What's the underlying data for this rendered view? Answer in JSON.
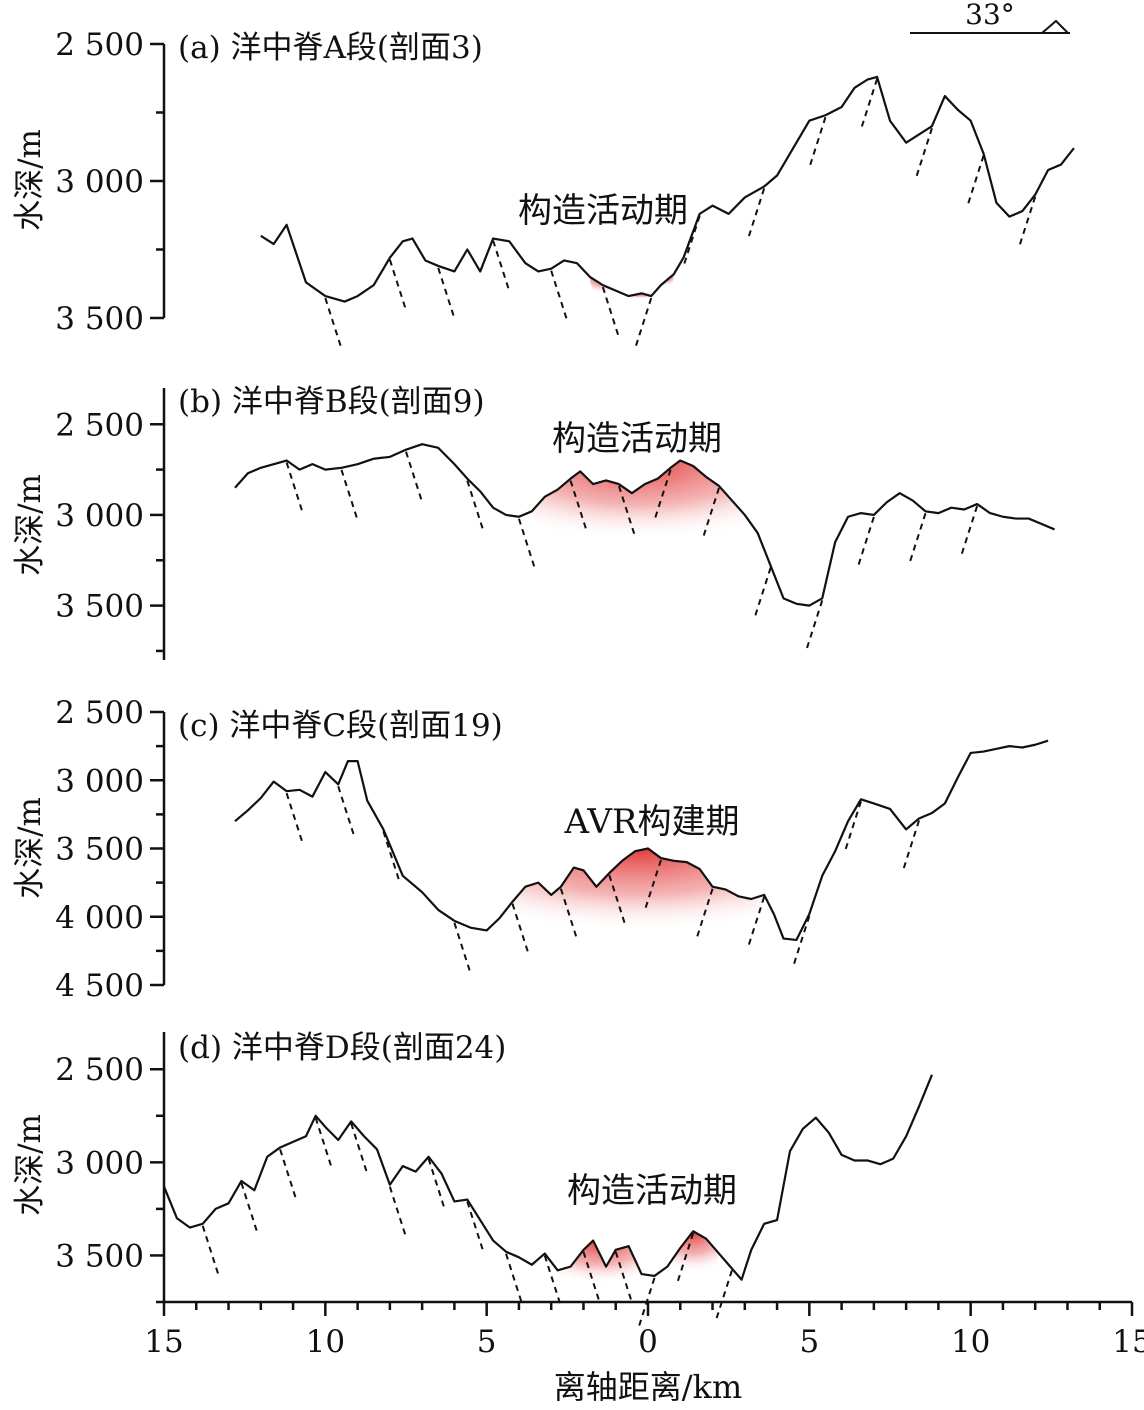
{
  "colors": {
    "line": "#111111",
    "highlight": "#e23b3b",
    "background": "#ffffff"
  },
  "orientation_note": {
    "label": "33°",
    "icon": "slope-triangle-icon"
  },
  "x_axis": {
    "label": "离轴距离/km",
    "ticks": [
      15,
      10,
      5,
      0,
      5,
      10,
      15
    ],
    "tick_labels": [
      "15",
      "10",
      "5",
      "0",
      "5",
      "10",
      "15"
    ]
  },
  "chart_data": [
    {
      "type": "line",
      "panel_label": "(a) 洋中脊A段(剖面3)",
      "ylabel": "水深/m",
      "yticks": [
        "2 500",
        "3 000",
        "3 500"
      ],
      "ylim": [
        2500,
        3500
      ],
      "annotation": "构造活动期",
      "x": [
        -12,
        -11.6,
        -11.2,
        -10.6,
        -10,
        -9.4,
        -9,
        -8.5,
        -8,
        -7.6,
        -7.3,
        -6.9,
        -6.5,
        -6,
        -5.6,
        -5.2,
        -4.8,
        -4.3,
        -3.8,
        -3.4,
        -3,
        -2.6,
        -2.2,
        -1.8,
        -1.4,
        -1,
        -0.6,
        -0.2,
        0.1,
        0.4,
        0.8,
        1.1,
        1.6,
        2,
        2.5,
        3,
        3.6,
        4,
        4.5,
        5,
        5.5,
        6,
        6.4,
        6.8,
        7.1,
        7.5,
        8,
        8.4,
        8.8,
        9.2,
        9.6,
        10,
        10.4,
        10.8,
        11.2,
        11.6,
        12,
        12.4,
        12.8,
        13.2
      ],
      "y": [
        3200,
        3230,
        3160,
        3370,
        3420,
        3440,
        3420,
        3380,
        3280,
        3220,
        3210,
        3290,
        3310,
        3330,
        3250,
        3330,
        3210,
        3220,
        3300,
        3330,
        3320,
        3290,
        3300,
        3350,
        3380,
        3400,
        3420,
        3410,
        3420,
        3380,
        3340,
        3280,
        3120,
        3090,
        3120,
        3060,
        3020,
        2980,
        2880,
        2780,
        2760,
        2730,
        2660,
        2630,
        2620,
        2780,
        2860,
        2830,
        2800,
        2690,
        2740,
        2780,
        2900,
        3080,
        3130,
        3110,
        3050,
        2960,
        2940,
        2880
      ],
      "faults": 14
    },
    {
      "type": "line",
      "panel_label": "(b) 洋中脊B段(剖面9)",
      "ylabel": "水深/m",
      "yticks": [
        "2 500",
        "3 000",
        "3 500"
      ],
      "ylim": [
        2300,
        3700
      ],
      "annotation": "构造活动期",
      "x": [
        -12.8,
        -12.4,
        -12,
        -11.6,
        -11.2,
        -10.8,
        -10.4,
        -10,
        -9.5,
        -9,
        -8.5,
        -8,
        -7.5,
        -7,
        -6.5,
        -6,
        -5.6,
        -5.2,
        -4.8,
        -4.4,
        -4,
        -3.6,
        -3.2,
        -2.8,
        -2.4,
        -2.1,
        -1.7,
        -1.3,
        -0.9,
        -0.5,
        -0.1,
        0.3,
        0.7,
        1,
        1.4,
        1.8,
        2.2,
        2.6,
        3,
        3.4,
        3.8,
        4.2,
        4.6,
        5,
        5.4,
        5.8,
        6.2,
        6.6,
        7,
        7.4,
        7.8,
        8.2,
        8.6,
        9,
        9.4,
        9.8,
        10.2,
        10.6,
        11,
        11.4,
        11.8,
        12.2,
        12.6
      ],
      "y": [
        2850,
        2770,
        2740,
        2720,
        2700,
        2750,
        2720,
        2750,
        2740,
        2720,
        2690,
        2680,
        2640,
        2610,
        2630,
        2720,
        2800,
        2870,
        2960,
        3000,
        3010,
        2980,
        2900,
        2860,
        2800,
        2760,
        2830,
        2810,
        2830,
        2880,
        2830,
        2800,
        2740,
        2700,
        2730,
        2790,
        2840,
        2920,
        3000,
        3100,
        3280,
        3460,
        3490,
        3500,
        3460,
        3150,
        3010,
        2990,
        3000,
        2930,
        2880,
        2920,
        2980,
        2990,
        2960,
        2970,
        2940,
        2990,
        3010,
        3020,
        3020,
        3050,
        3080
      ],
      "faults": 14
    },
    {
      "type": "line",
      "panel_label": "(c) 洋中脊C段(剖面19)",
      "ylabel": "水深/m",
      "yticks": [
        "2 500",
        "3 000",
        "3 500",
        "4 000",
        "4 500"
      ],
      "ylim": [
        2500,
        4500
      ],
      "annotation": "AVR构建期",
      "x": [
        -12.8,
        -12.4,
        -12,
        -11.6,
        -11.2,
        -10.8,
        -10.4,
        -10,
        -9.6,
        -9.3,
        -9,
        -8.7,
        -8.2,
        -7.6,
        -7,
        -6.5,
        -6,
        -5.5,
        -5,
        -4.6,
        -4.2,
        -3.8,
        -3.4,
        -3,
        -2.7,
        -2.3,
        -2,
        -1.6,
        -1.2,
        -0.8,
        -0.4,
        0,
        0.4,
        0.8,
        1.2,
        1.6,
        2,
        2.4,
        2.8,
        3.2,
        3.6,
        3.9,
        4.2,
        4.6,
        5,
        5.4,
        5.8,
        6.2,
        6.6,
        7,
        7.5,
        8,
        8.4,
        8.8,
        9.2,
        9.6,
        10,
        10.4,
        10.8,
        11.2,
        11.6,
        12,
        12.4
      ],
      "y": [
        3300,
        3220,
        3130,
        3010,
        3080,
        3070,
        3120,
        2940,
        3030,
        2860,
        2860,
        3150,
        3360,
        3700,
        3820,
        3950,
        4030,
        4080,
        4100,
        4010,
        3890,
        3780,
        3750,
        3840,
        3780,
        3640,
        3660,
        3780,
        3680,
        3590,
        3520,
        3500,
        3570,
        3590,
        3600,
        3650,
        3780,
        3800,
        3850,
        3870,
        3840,
        3980,
        4160,
        4170,
        3980,
        3700,
        3520,
        3300,
        3140,
        3170,
        3210,
        3360,
        3280,
        3240,
        3170,
        2980,
        2800,
        2790,
        2770,
        2750,
        2760,
        2740,
        2710
      ],
      "faults": 13
    },
    {
      "type": "line",
      "panel_label": "(d) 洋中脊D段(剖面24)",
      "ylabel": "水深/m",
      "yticks": [
        "2 500",
        "3 000",
        "3 500"
      ],
      "ylim": [
        2300,
        3750
      ],
      "annotation": "构造活动期",
      "x": [
        -15,
        -14.6,
        -14.2,
        -13.8,
        -13.4,
        -13,
        -12.6,
        -12.2,
        -11.8,
        -11.4,
        -11,
        -10.6,
        -10.3,
        -10,
        -9.6,
        -9.2,
        -8.8,
        -8.4,
        -8,
        -7.6,
        -7.2,
        -6.8,
        -6.4,
        -6,
        -5.6,
        -5.2,
        -4.8,
        -4.4,
        -4,
        -3.6,
        -3.2,
        -2.8,
        -2.4,
        -2,
        -1.7,
        -1.3,
        -1,
        -0.6,
        -0.2,
        0.2,
        0.6,
        1,
        1.4,
        1.8,
        2.2,
        2.6,
        2.9,
        3.2,
        3.6,
        4,
        4.4,
        4.8,
        5.2,
        5.6,
        6,
        6.4,
        6.8,
        7.2,
        7.6,
        8,
        8.4,
        8.8
      ],
      "y": [
        3130,
        3300,
        3350,
        3330,
        3250,
        3220,
        3100,
        3150,
        2970,
        2920,
        2890,
        2860,
        2750,
        2810,
        2880,
        2780,
        2860,
        2930,
        3120,
        3020,
        3050,
        2970,
        3060,
        3210,
        3200,
        3310,
        3420,
        3480,
        3510,
        3550,
        3490,
        3580,
        3560,
        3470,
        3420,
        3560,
        3470,
        3450,
        3600,
        3610,
        3560,
        3460,
        3370,
        3410,
        3490,
        3570,
        3630,
        3470,
        3330,
        3310,
        2940,
        2820,
        2760,
        2840,
        2960,
        2990,
        2990,
        3010,
        2980,
        2860,
        2700,
        2530
      ],
      "faults": 15
    }
  ]
}
